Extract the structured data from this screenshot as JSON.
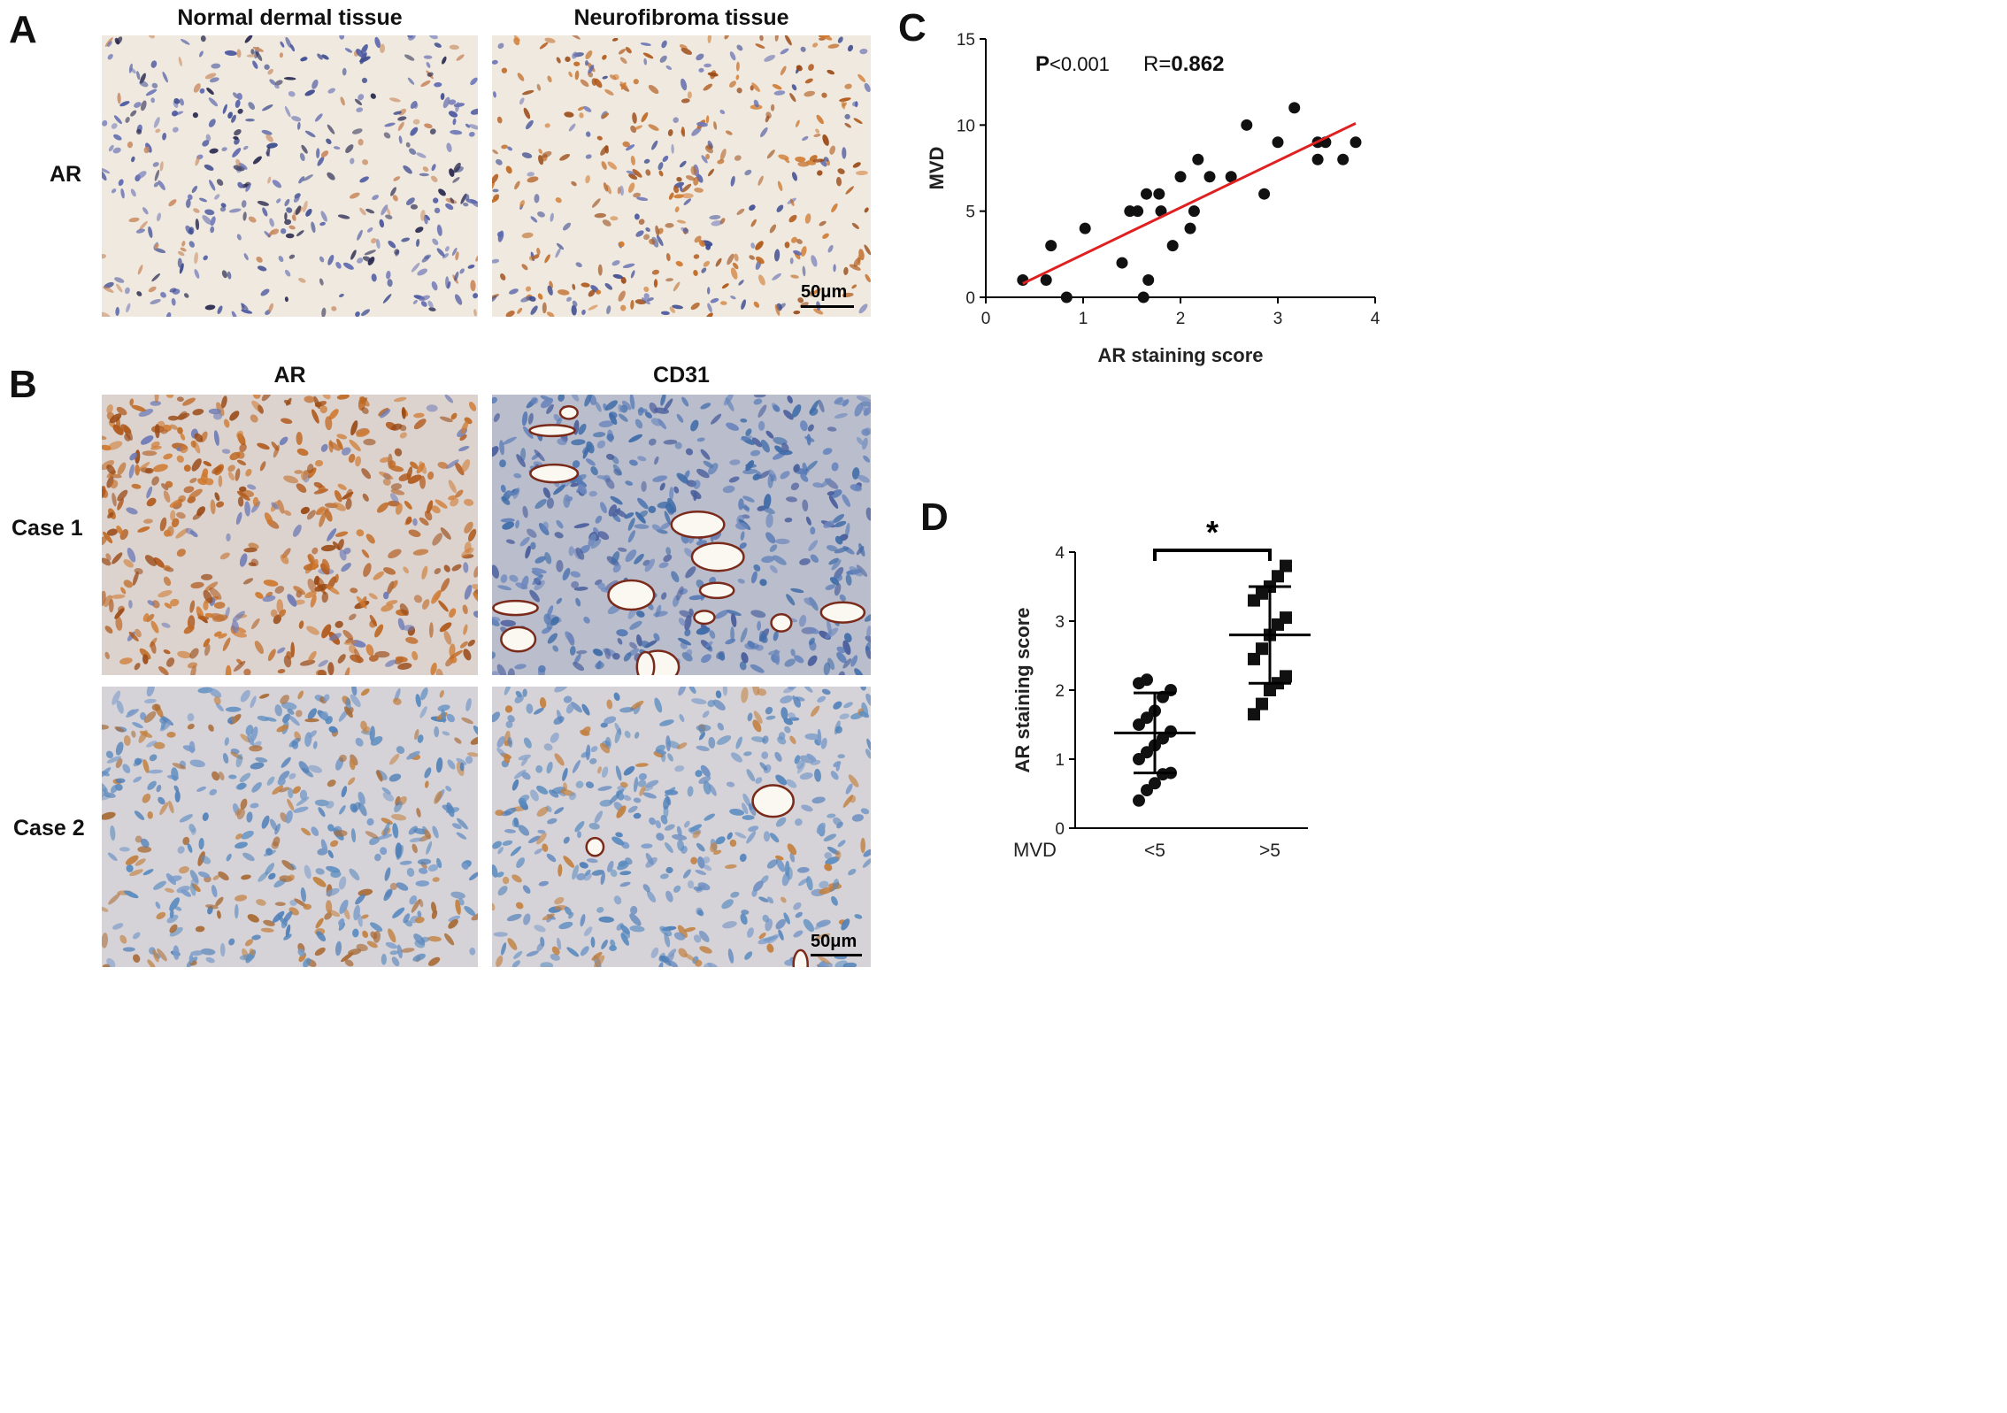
{
  "panel_letters": {
    "a": "A",
    "b": "B",
    "c": "C",
    "d": "D"
  },
  "panel_a": {
    "col_headers": [
      "Normal dermal tissue",
      "Neurofibroma tissue"
    ],
    "row_label": "AR",
    "scale_label": "50μm"
  },
  "panel_b": {
    "col_headers": [
      "AR",
      "CD31"
    ],
    "row_labels": [
      "Case 1",
      "Case 2"
    ],
    "scale_label": "50μm"
  },
  "colors": {
    "regression_line": "#e02020",
    "points": "#111111",
    "ar_stain": "#b8651e",
    "hematoxylin": "#5b6aa8"
  },
  "chart_data": [
    {
      "id": "C",
      "type": "scatter",
      "xlabel": "AR staining score",
      "ylabel": "MVD",
      "xlim": [
        0,
        4
      ],
      "ylim": [
        0,
        15
      ],
      "xticks": [
        0,
        1,
        2,
        3,
        4
      ],
      "yticks": [
        0,
        5,
        10,
        15
      ],
      "annotations": {
        "p_prefix": "P",
        "p_value": "<0.001",
        "r_prefix": "R=",
        "r_value": "0.862"
      },
      "points": [
        [
          0.38,
          1
        ],
        [
          0.62,
          1
        ],
        [
          0.67,
          3
        ],
        [
          0.83,
          0
        ],
        [
          1.02,
          4
        ],
        [
          1.4,
          2
        ],
        [
          1.48,
          5
        ],
        [
          1.56,
          5
        ],
        [
          1.62,
          0
        ],
        [
          1.65,
          6
        ],
        [
          1.67,
          1
        ],
        [
          1.78,
          6
        ],
        [
          1.8,
          5
        ],
        [
          1.92,
          3
        ],
        [
          2.0,
          7
        ],
        [
          2.1,
          4
        ],
        [
          2.14,
          5
        ],
        [
          2.18,
          8
        ],
        [
          2.3,
          7
        ],
        [
          2.52,
          7
        ],
        [
          2.68,
          10
        ],
        [
          2.86,
          6
        ],
        [
          3.0,
          9
        ],
        [
          3.17,
          11
        ],
        [
          3.41,
          9
        ],
        [
          3.41,
          8
        ],
        [
          3.49,
          9
        ],
        [
          3.67,
          8
        ],
        [
          3.8,
          9
        ]
      ],
      "fit_line": {
        "x": [
          0.38,
          3.8
        ],
        "y": [
          0.8,
          10.1
        ]
      }
    },
    {
      "id": "D",
      "type": "scatter",
      "xlabel_prefix": "MVD",
      "ylabel": "AR staining score",
      "categories": [
        "<5",
        ">5"
      ],
      "ylim": [
        0,
        4
      ],
      "yticks": [
        0,
        1,
        2,
        3,
        4
      ],
      "series": [
        {
          "category": "<5",
          "marker": "circle",
          "values": [
            0.4,
            0.55,
            0.65,
            0.78,
            0.8,
            1.0,
            1.1,
            1.2,
            1.3,
            1.4,
            1.5,
            1.6,
            1.7,
            1.9,
            2.0,
            2.1,
            2.15
          ],
          "mean": 1.38,
          "sd_low": 0.8,
          "sd_high": 1.96
        },
        {
          "category": ">5",
          "marker": "square",
          "values": [
            1.65,
            1.8,
            2.0,
            2.1,
            2.2,
            2.45,
            2.6,
            2.8,
            2.95,
            3.05,
            3.3,
            3.4,
            3.5,
            3.65,
            3.8
          ],
          "mean": 2.8,
          "sd_low": 2.1,
          "sd_high": 3.5
        }
      ],
      "significance": "*"
    }
  ]
}
